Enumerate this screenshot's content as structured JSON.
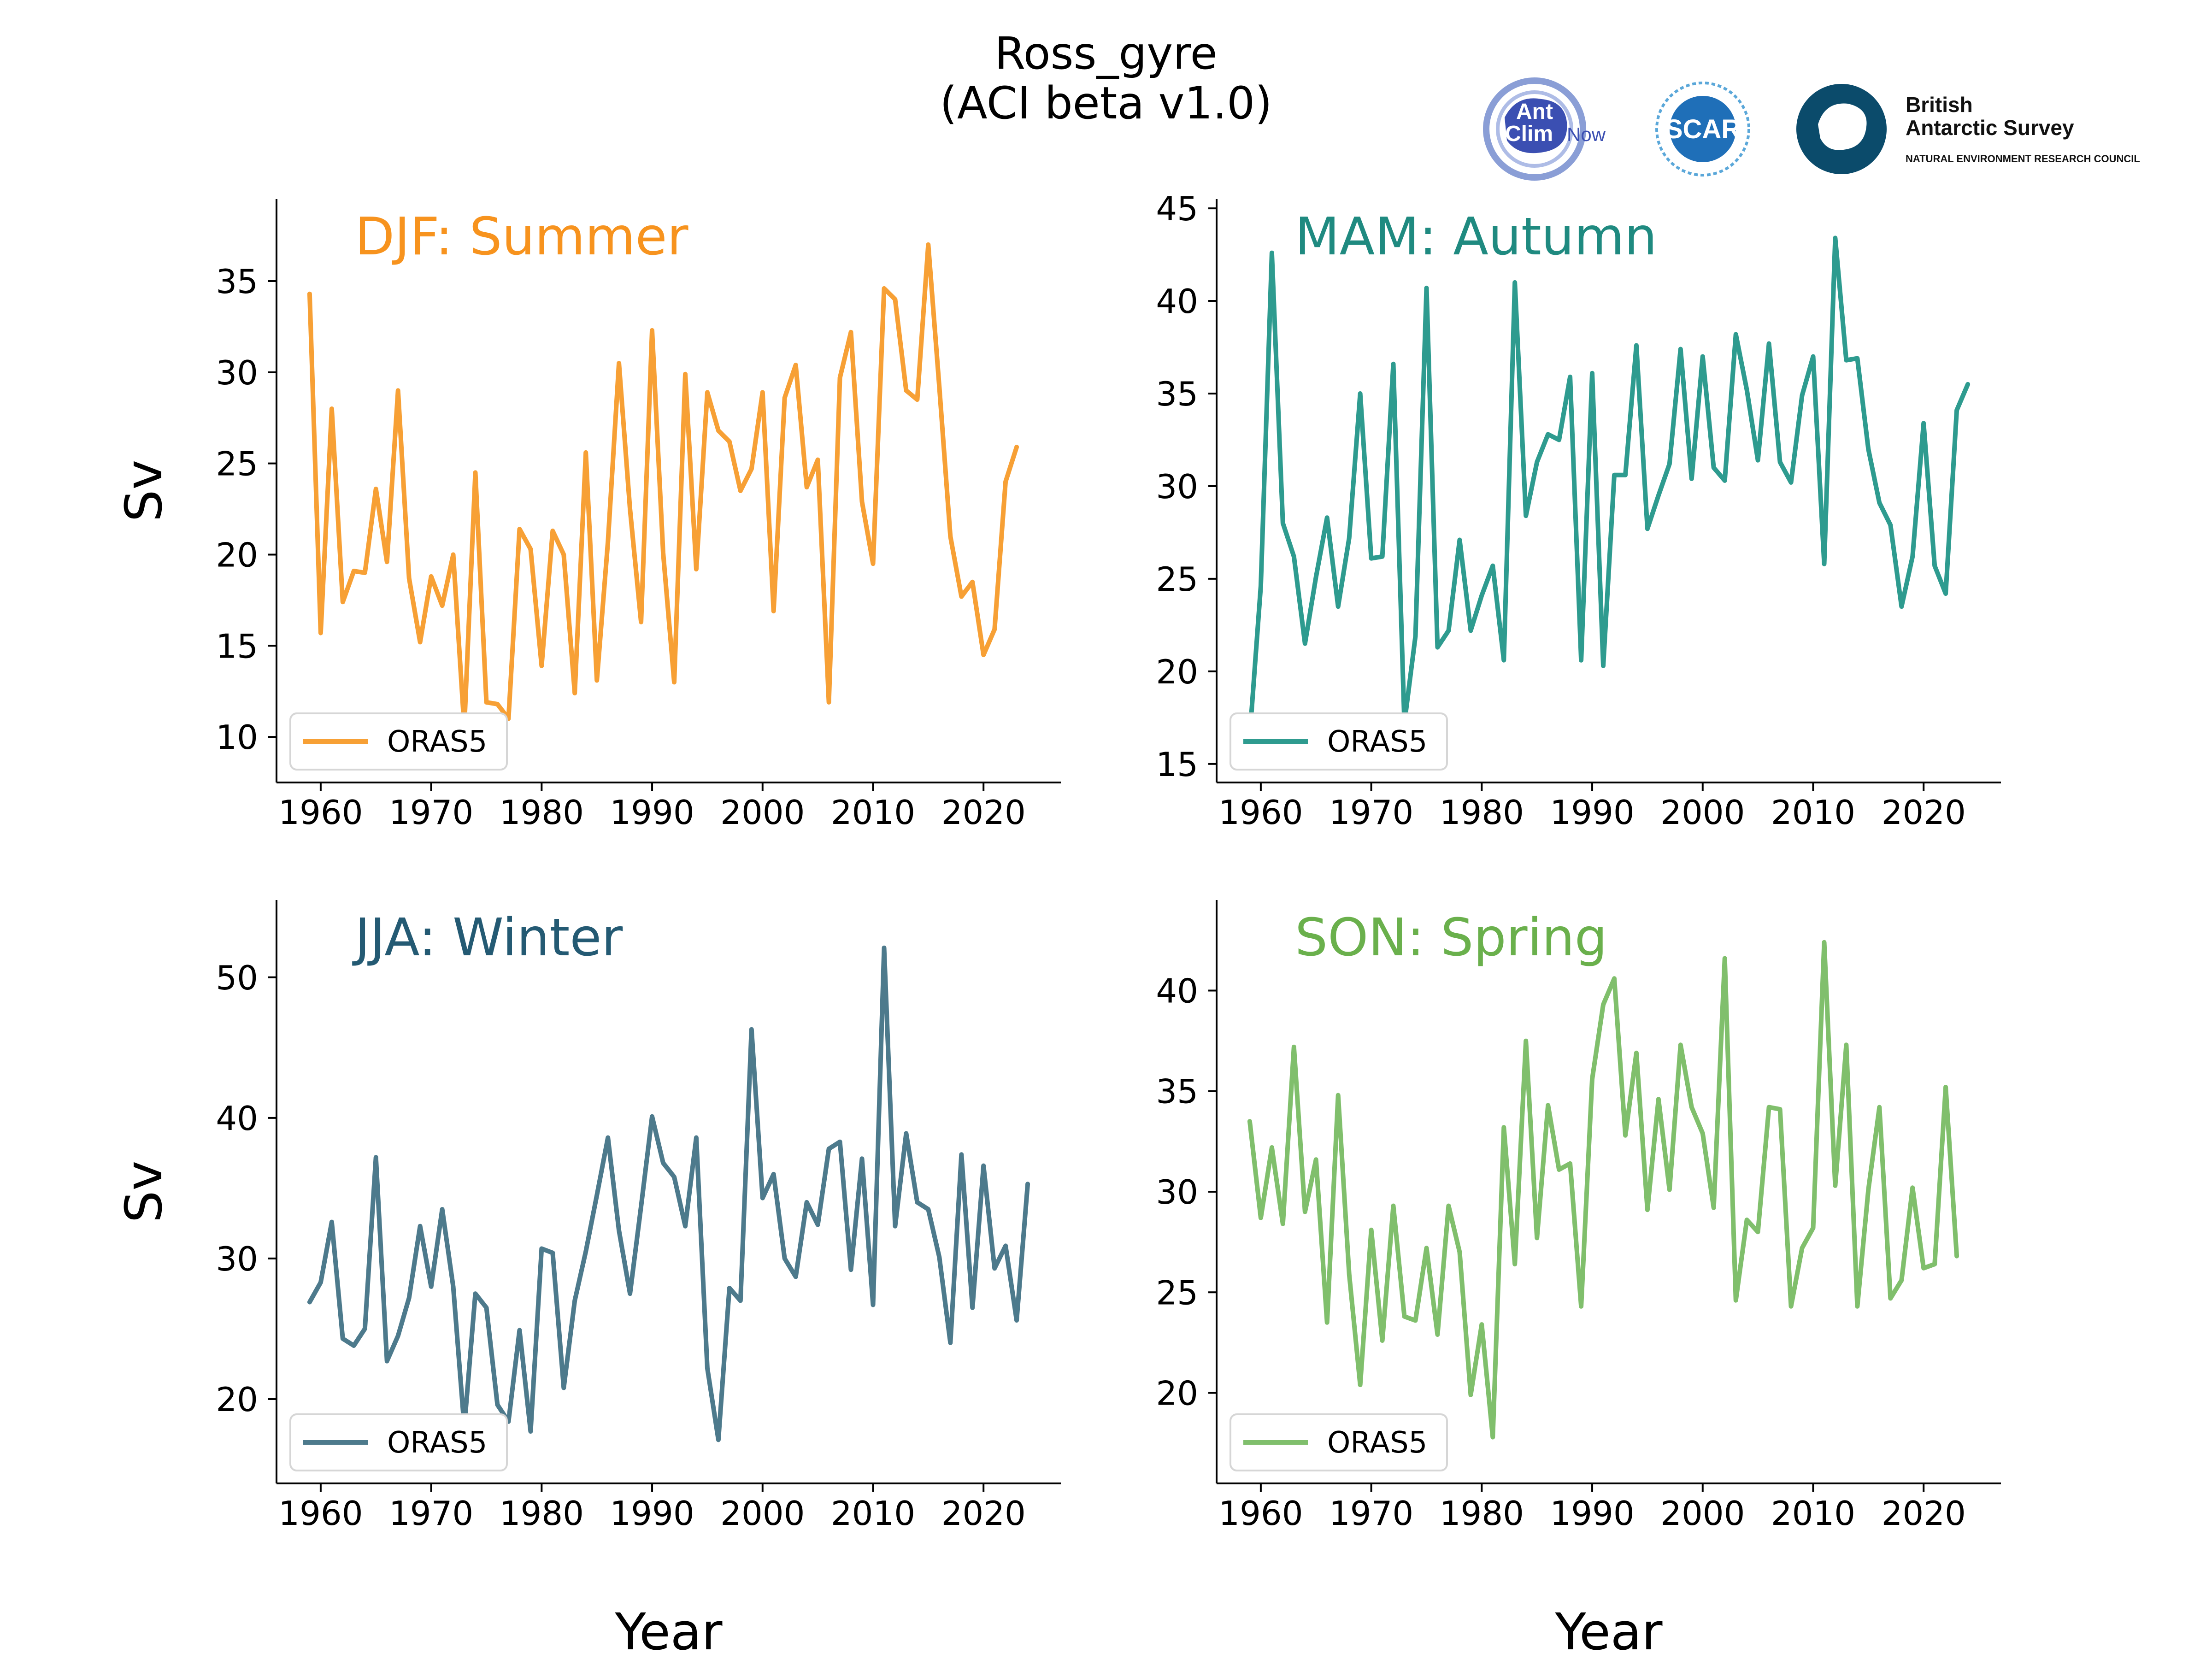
{
  "figure": {
    "title_line1": "Ross_gyre",
    "title_line2": "(ACI beta v1.0)"
  },
  "logos": {
    "antclimnow": {
      "line1": "Ant",
      "line2": "Clim",
      "line3": "Now"
    },
    "scar": {
      "text": "SCAR"
    },
    "bas": {
      "line1": "British",
      "line2": "Antarctic Survey",
      "line3": "NATURAL ENVIRONMENT RESEARCH COUNCIL"
    }
  },
  "colors": {
    "djf": "#f7a035",
    "mam": "#2e9b8f",
    "jja": "#4d7a8c",
    "son": "#80bf6c",
    "djf_title": "#f7931e",
    "mam_title": "#1f8a80",
    "jja_title": "#245a73",
    "son_title": "#6ab04c"
  },
  "chart_data": [
    {
      "type": "line",
      "panel": "DJF",
      "title": "DJF: Summer",
      "xlabel": "",
      "ylabel": "Sv",
      "xlim": [
        1956,
        2027
      ],
      "ylim": [
        7.5,
        39.5
      ],
      "xticks": [
        1960,
        1970,
        1980,
        1990,
        2000,
        2010,
        2020
      ],
      "yticks": [
        10,
        15,
        20,
        25,
        30,
        35
      ],
      "legend": "lower-left",
      "color_key": "djf",
      "x_start": 1959,
      "series": [
        {
          "name": "ORAS5",
          "values": [
            34.3,
            15.7,
            28.0,
            17.4,
            19.1,
            19.0,
            23.6,
            19.6,
            29.0,
            18.7,
            15.2,
            18.8,
            17.2,
            20.0,
            10.5,
            24.5,
            11.9,
            11.8,
            11.0,
            21.4,
            20.3,
            13.9,
            21.3,
            20.0,
            12.4,
            25.6,
            13.1,
            20.7,
            30.5,
            22.5,
            16.3,
            32.3,
            20.1,
            13.0,
            29.9,
            19.2,
            28.9,
            26.8,
            26.2,
            23.5,
            24.7,
            28.9,
            16.9,
            28.6,
            30.4,
            23.7,
            25.2,
            11.9,
            29.7,
            32.2,
            22.9,
            19.5,
            34.6,
            34.0,
            29.0,
            28.5,
            37.0,
            29.2,
            21.0,
            17.7,
            18.5,
            14.5,
            15.9,
            24.0,
            25.9
          ]
        }
      ]
    },
    {
      "type": "line",
      "panel": "MAM",
      "title": "MAM: Autumn",
      "xlabel": "",
      "ylabel": "",
      "xlim": [
        1956,
        2027
      ],
      "ylim": [
        14.0,
        45.5
      ],
      "xticks": [
        1960,
        1970,
        1980,
        1990,
        2000,
        2010,
        2020
      ],
      "yticks": [
        15,
        20,
        25,
        30,
        35,
        40,
        45
      ],
      "legend": "lower-left",
      "color_key": "mam",
      "x_start": 1959,
      "series": [
        {
          "name": "ORAS5",
          "values": [
            16.5,
            24.6,
            42.6,
            28.0,
            26.2,
            21.5,
            25.1,
            28.3,
            23.5,
            27.2,
            35.0,
            26.1,
            26.2,
            36.6,
            17.2,
            21.9,
            40.7,
            21.3,
            22.2,
            27.1,
            22.2,
            24.1,
            25.7,
            20.6,
            41.0,
            28.4,
            31.3,
            32.8,
            32.5,
            35.9,
            20.6,
            36.1,
            20.3,
            30.6,
            30.6,
            37.6,
            27.7,
            29.5,
            31.2,
            37.4,
            30.4,
            37.0,
            31.0,
            30.3,
            38.2,
            35.2,
            31.4,
            37.7,
            31.3,
            30.2,
            34.9,
            37.0,
            25.8,
            43.4,
            36.8,
            36.9,
            32.0,
            29.1,
            27.9,
            23.5,
            26.2,
            33.4,
            25.7,
            24.2,
            34.1,
            35.5
          ]
        }
      ]
    },
    {
      "type": "line",
      "panel": "JJA",
      "title": "JJA: Winter",
      "xlabel": "Year",
      "ylabel": "Sv",
      "xlim": [
        1956,
        2027
      ],
      "ylim": [
        14.0,
        55.5
      ],
      "xticks": [
        1960,
        1970,
        1980,
        1990,
        2000,
        2010,
        2020
      ],
      "yticks": [
        20,
        30,
        40,
        50
      ],
      "legend": "lower-left",
      "color_key": "jja",
      "x_start": 1959,
      "series": [
        {
          "name": "ORAS5",
          "values": [
            26.9,
            28.3,
            32.6,
            24.3,
            23.8,
            25.0,
            37.2,
            22.7,
            24.5,
            27.2,
            32.3,
            28.0,
            33.5,
            28.0,
            18.0,
            27.5,
            26.5,
            19.6,
            18.4,
            24.9,
            17.7,
            30.7,
            30.4,
            20.8,
            27.0,
            30.5,
            34.5,
            38.6,
            32.0,
            27.5,
            33.7,
            40.1,
            36.8,
            35.8,
            32.3,
            38.6,
            22.2,
            17.1,
            27.9,
            27.0,
            46.3,
            34.3,
            36.0,
            30.0,
            28.7,
            34.0,
            32.4,
            37.8,
            38.3,
            29.2,
            37.1,
            26.7,
            52.1,
            32.3,
            38.9,
            34.0,
            33.5,
            30.1,
            24.0,
            37.4,
            26.5,
            36.6,
            29.3,
            30.9,
            25.6,
            35.3
          ]
        }
      ]
    },
    {
      "type": "line",
      "panel": "SON",
      "title": "SON: Spring",
      "xlabel": "Year",
      "ylabel": "",
      "xlim": [
        1956,
        2027
      ],
      "ylim": [
        15.5,
        44.5
      ],
      "xticks": [
        1960,
        1970,
        1980,
        1990,
        2000,
        2010,
        2020
      ],
      "yticks": [
        20,
        25,
        30,
        35,
        40
      ],
      "legend": "lower-left",
      "color_key": "son",
      "x_start": 1959,
      "series": [
        {
          "name": "ORAS5",
          "values": [
            33.5,
            28.7,
            32.2,
            28.4,
            37.2,
            29.0,
            31.6,
            23.5,
            34.8,
            25.9,
            20.4,
            28.1,
            22.6,
            29.3,
            23.8,
            23.6,
            27.2,
            22.9,
            29.3,
            27.0,
            19.9,
            23.4,
            17.8,
            33.2,
            26.4,
            37.5,
            27.7,
            34.3,
            31.1,
            31.4,
            24.3,
            35.6,
            39.3,
            40.6,
            32.8,
            36.9,
            29.1,
            34.6,
            30.1,
            37.3,
            34.2,
            32.9,
            29.2,
            41.6,
            24.6,
            28.6,
            28.0,
            34.2,
            34.1,
            24.3,
            27.2,
            28.2,
            42.4,
            30.3,
            37.3,
            24.3,
            30.1,
            34.2,
            24.7,
            25.6,
            30.2,
            26.2,
            26.4,
            35.2,
            26.8
          ]
        }
      ]
    }
  ]
}
